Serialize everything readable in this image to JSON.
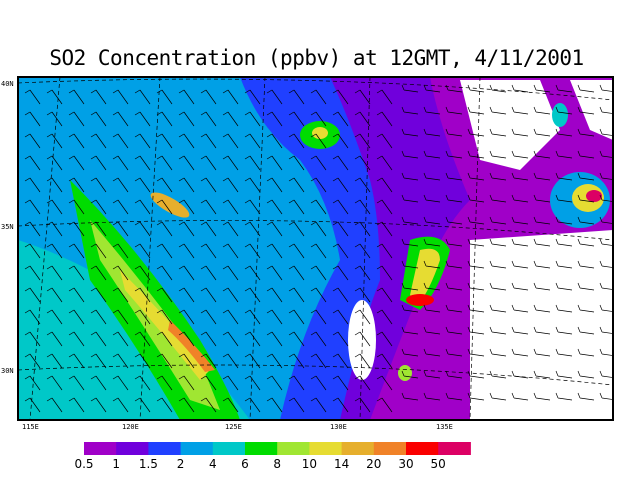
{
  "title": "SO2 Concentration (ppbv) at 12GMT, 4/11/2001",
  "map": {
    "lon_labels": [
      "115E",
      "120E",
      "125E",
      "130E",
      "135E"
    ],
    "lat_labels": [
      "40N",
      "35N",
      "30N"
    ],
    "lon_range": [
      114.7,
      138.5
    ],
    "lat_range": [
      28.5,
      40.3
    ],
    "wind_barbs": true,
    "coastlines": true
  },
  "legend": {
    "labels": [
      "0.5",
      "1",
      "1.5",
      "2",
      "4",
      "6",
      "8",
      "10",
      "14",
      "20",
      "30",
      "50"
    ],
    "colors": [
      "#a000c8",
      "#7000dc",
      "#2040ff",
      "#00a0e6",
      "#00c8c8",
      "#00dc00",
      "#a0e632",
      "#e6dc32",
      "#e6af2d",
      "#f08228",
      "#fa0000",
      "#dc0064"
    ]
  }
}
